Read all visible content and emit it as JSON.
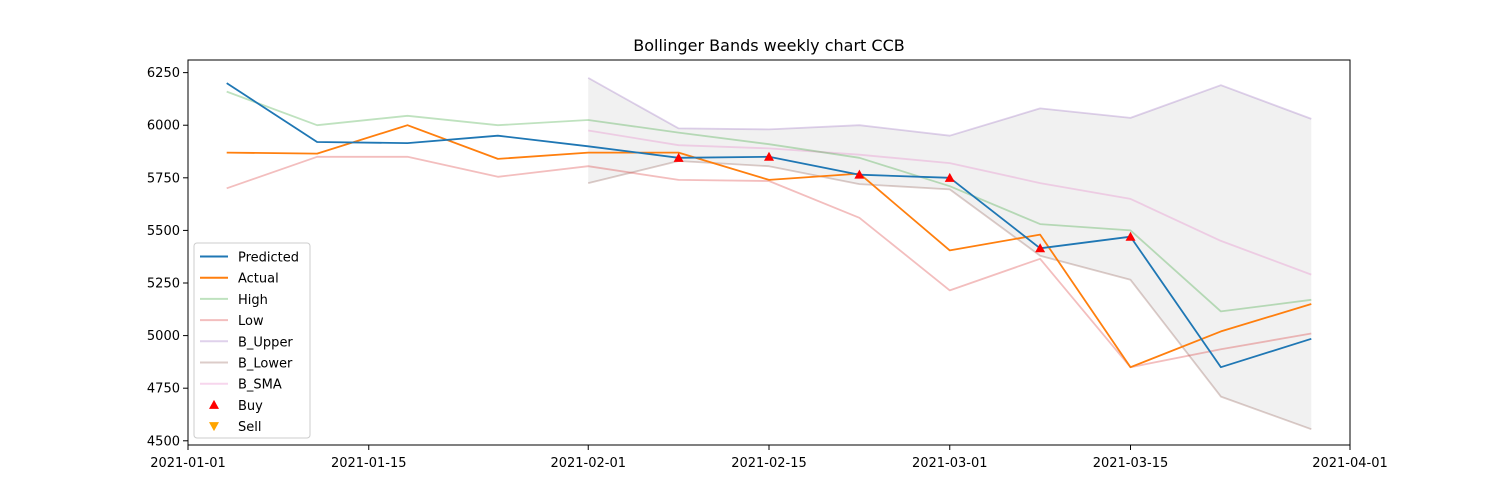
{
  "chart_data": {
    "type": "line",
    "title": "Bollinger Bands weekly chart CCB",
    "xlabel": "",
    "ylabel": "",
    "xlim": [
      "2021-01-01",
      "2021-04-01"
    ],
    "ylim": [
      4480,
      6310
    ],
    "x_ticks": [
      "2021-01-01",
      "2021-01-15",
      "2021-02-01",
      "2021-02-15",
      "2021-03-01",
      "2021-03-15",
      "2021-04-01"
    ],
    "y_ticks": [
      4500,
      4750,
      5000,
      5250,
      5500,
      5750,
      6000,
      6250
    ],
    "legend_position": "lower-left",
    "dates": [
      "2021-01-04",
      "2021-01-11",
      "2021-01-18",
      "2021-01-25",
      "2021-02-01",
      "2021-02-08",
      "2021-02-15",
      "2021-02-22",
      "2021-03-01",
      "2021-03-08",
      "2021-03-15",
      "2021-03-22",
      "2021-03-29"
    ],
    "series": [
      {
        "name": "Predicted",
        "color": "#1f77b4",
        "values": [
          6200,
          5920,
          5915,
          5950,
          5900,
          5845,
          5850,
          5765,
          5750,
          5415,
          5470,
          4850,
          4985
        ]
      },
      {
        "name": "Actual",
        "color": "#ff7f0e",
        "values": [
          5870,
          5865,
          6000,
          5840,
          5870,
          5870,
          5740,
          5770,
          5405,
          5480,
          4850,
          5020,
          5150
        ]
      },
      {
        "name": "High",
        "color": "#2ca02c",
        "alpha": 0.3,
        "values": [
          6160,
          6000,
          6045,
          6000,
          6025,
          5965,
          5910,
          5845,
          5710,
          5530,
          5500,
          5115,
          5170
        ]
      },
      {
        "name": "Low",
        "color": "#d62728",
        "alpha": 0.3,
        "values": [
          5700,
          5850,
          5850,
          5755,
          5805,
          5740,
          5735,
          5560,
          5215,
          5365,
          4850,
          4935,
          5010
        ]
      },
      {
        "name": "B_Upper",
        "color": "#9467bd",
        "alpha": 0.3,
        "values": [
          null,
          null,
          null,
          null,
          6225,
          5985,
          5980,
          6000,
          5950,
          6080,
          6035,
          6190,
          6030
        ]
      },
      {
        "name": "B_Lower",
        "color": "#8c564b",
        "alpha": 0.3,
        "values": [
          null,
          null,
          null,
          null,
          5725,
          5830,
          5805,
          5720,
          5695,
          5380,
          5265,
          4710,
          4555
        ]
      },
      {
        "name": "B_SMA",
        "color": "#e377c2",
        "alpha": 0.3,
        "values": [
          null,
          null,
          null,
          null,
          5975,
          5905,
          5890,
          5860,
          5820,
          5725,
          5650,
          5450,
          5290
        ]
      }
    ],
    "markers": [
      {
        "name": "Buy",
        "symbol": "triangle-up",
        "color": "#ff0000",
        "points": [
          {
            "x": "2021-02-08",
            "y": 5845
          },
          {
            "x": "2021-02-15",
            "y": 5850
          },
          {
            "x": "2021-02-22",
            "y": 5765
          },
          {
            "x": "2021-03-01",
            "y": 5750
          },
          {
            "x": "2021-03-08",
            "y": 5415
          },
          {
            "x": "2021-03-15",
            "y": 5470
          }
        ]
      },
      {
        "name": "Sell",
        "symbol": "triangle-down",
        "color": "#ffa500",
        "points": []
      }
    ],
    "band_fill": {
      "upper": "B_Upper",
      "lower": "B_Lower",
      "color": "#c8c8c8",
      "alpha": 0.25
    }
  }
}
